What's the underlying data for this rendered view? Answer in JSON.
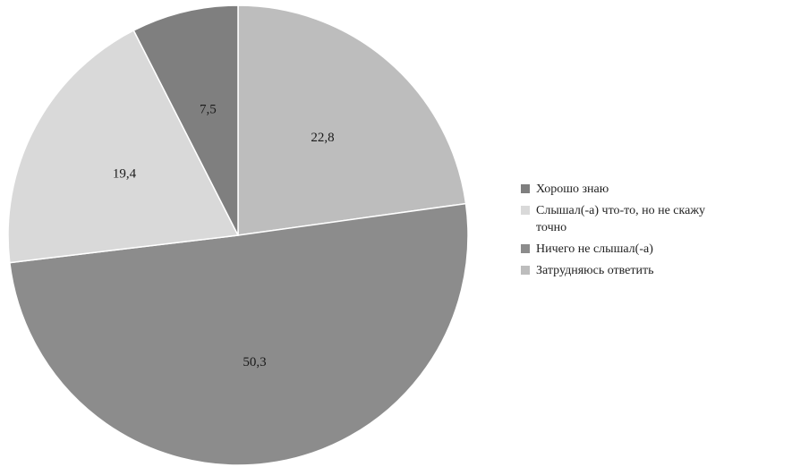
{
  "chart_data": {
    "type": "pie",
    "start_angle_deg": 0,
    "direction": "clockwise",
    "legend_position": "right",
    "slices": [
      {
        "label": "Затрудняюсь ответить",
        "value": 22.8,
        "display": "22,8",
        "color": "#bdbdbd"
      },
      {
        "label": "Ничего не слышал(-а)",
        "value": 50.3,
        "display": "50,3",
        "color": "#8c8c8c"
      },
      {
        "label": "Слышал(-а) что-то, но не скажу точно",
        "value": 19.4,
        "display": "19,4",
        "color": "#d9d9d9"
      },
      {
        "label": "Хорошо знаю",
        "value": 7.5,
        "display": "7,5",
        "color": "#7f7f7f"
      }
    ],
    "legend": [
      {
        "label_lines": [
          "Хорошо знаю"
        ],
        "color": "#7f7f7f"
      },
      {
        "label_lines": [
          "Слышал(-а) что-то, но не скажу",
          "точно"
        ],
        "color": "#d9d9d9"
      },
      {
        "label_lines": [
          "Ничего не слышал(-а)"
        ],
        "color": "#8c8c8c"
      },
      {
        "label_lines": [
          "Затрудняюсь ответить"
        ],
        "color": "#bdbdbd"
      }
    ]
  }
}
